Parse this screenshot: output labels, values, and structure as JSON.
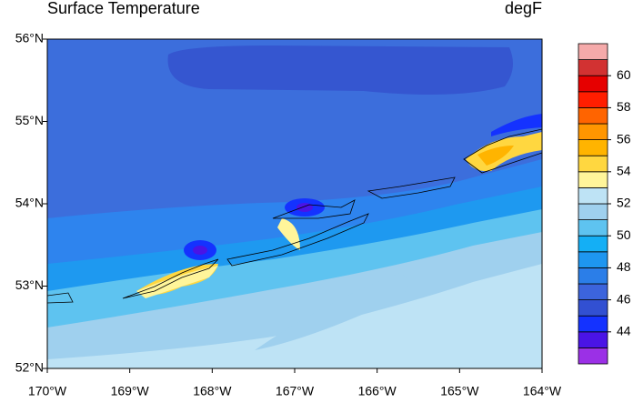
{
  "chart_data": {
    "type": "contour",
    "title": "Surface Temperature",
    "units": "degF",
    "xlim": [
      -170,
      -164
    ],
    "xticks": [
      {
        "value": -170,
        "label": "170°W"
      },
      {
        "value": -169,
        "label": "169°W"
      },
      {
        "value": -168,
        "label": "168°W"
      },
      {
        "value": -167,
        "label": "167°W"
      },
      {
        "value": -166,
        "label": "166°W"
      },
      {
        "value": -165,
        "label": "165°W"
      },
      {
        "value": -164,
        "label": "164°W"
      }
    ],
    "ylim": [
      52,
      56
    ],
    "yticks": [
      {
        "value": 52,
        "label": "52°N"
      },
      {
        "value": 53,
        "label": "53°N"
      },
      {
        "value": 54,
        "label": "54°N"
      },
      {
        "value": 55,
        "label": "55°N"
      },
      {
        "value": 56,
        "label": "56°N"
      }
    ],
    "colorbar": {
      "clim": [
        42,
        62
      ],
      "ticks": [
        44,
        46,
        48,
        50,
        52,
        54,
        56,
        58,
        60
      ],
      "colors": [
        "#9b30e6",
        "#4a14e6",
        "#1432ff",
        "#3250d2",
        "#3c64dc",
        "#2b7ee8",
        "#1e96f0",
        "#14aff5",
        "#5ec3f0",
        "#9fd0ee",
        "#bee3f5",
        "#fff59a",
        "#ffd740",
        "#ffb400",
        "#ff9600",
        "#ff6400",
        "#ff1e00",
        "#e60000",
        "#d23232",
        "#f5aaaa"
      ]
    }
  }
}
